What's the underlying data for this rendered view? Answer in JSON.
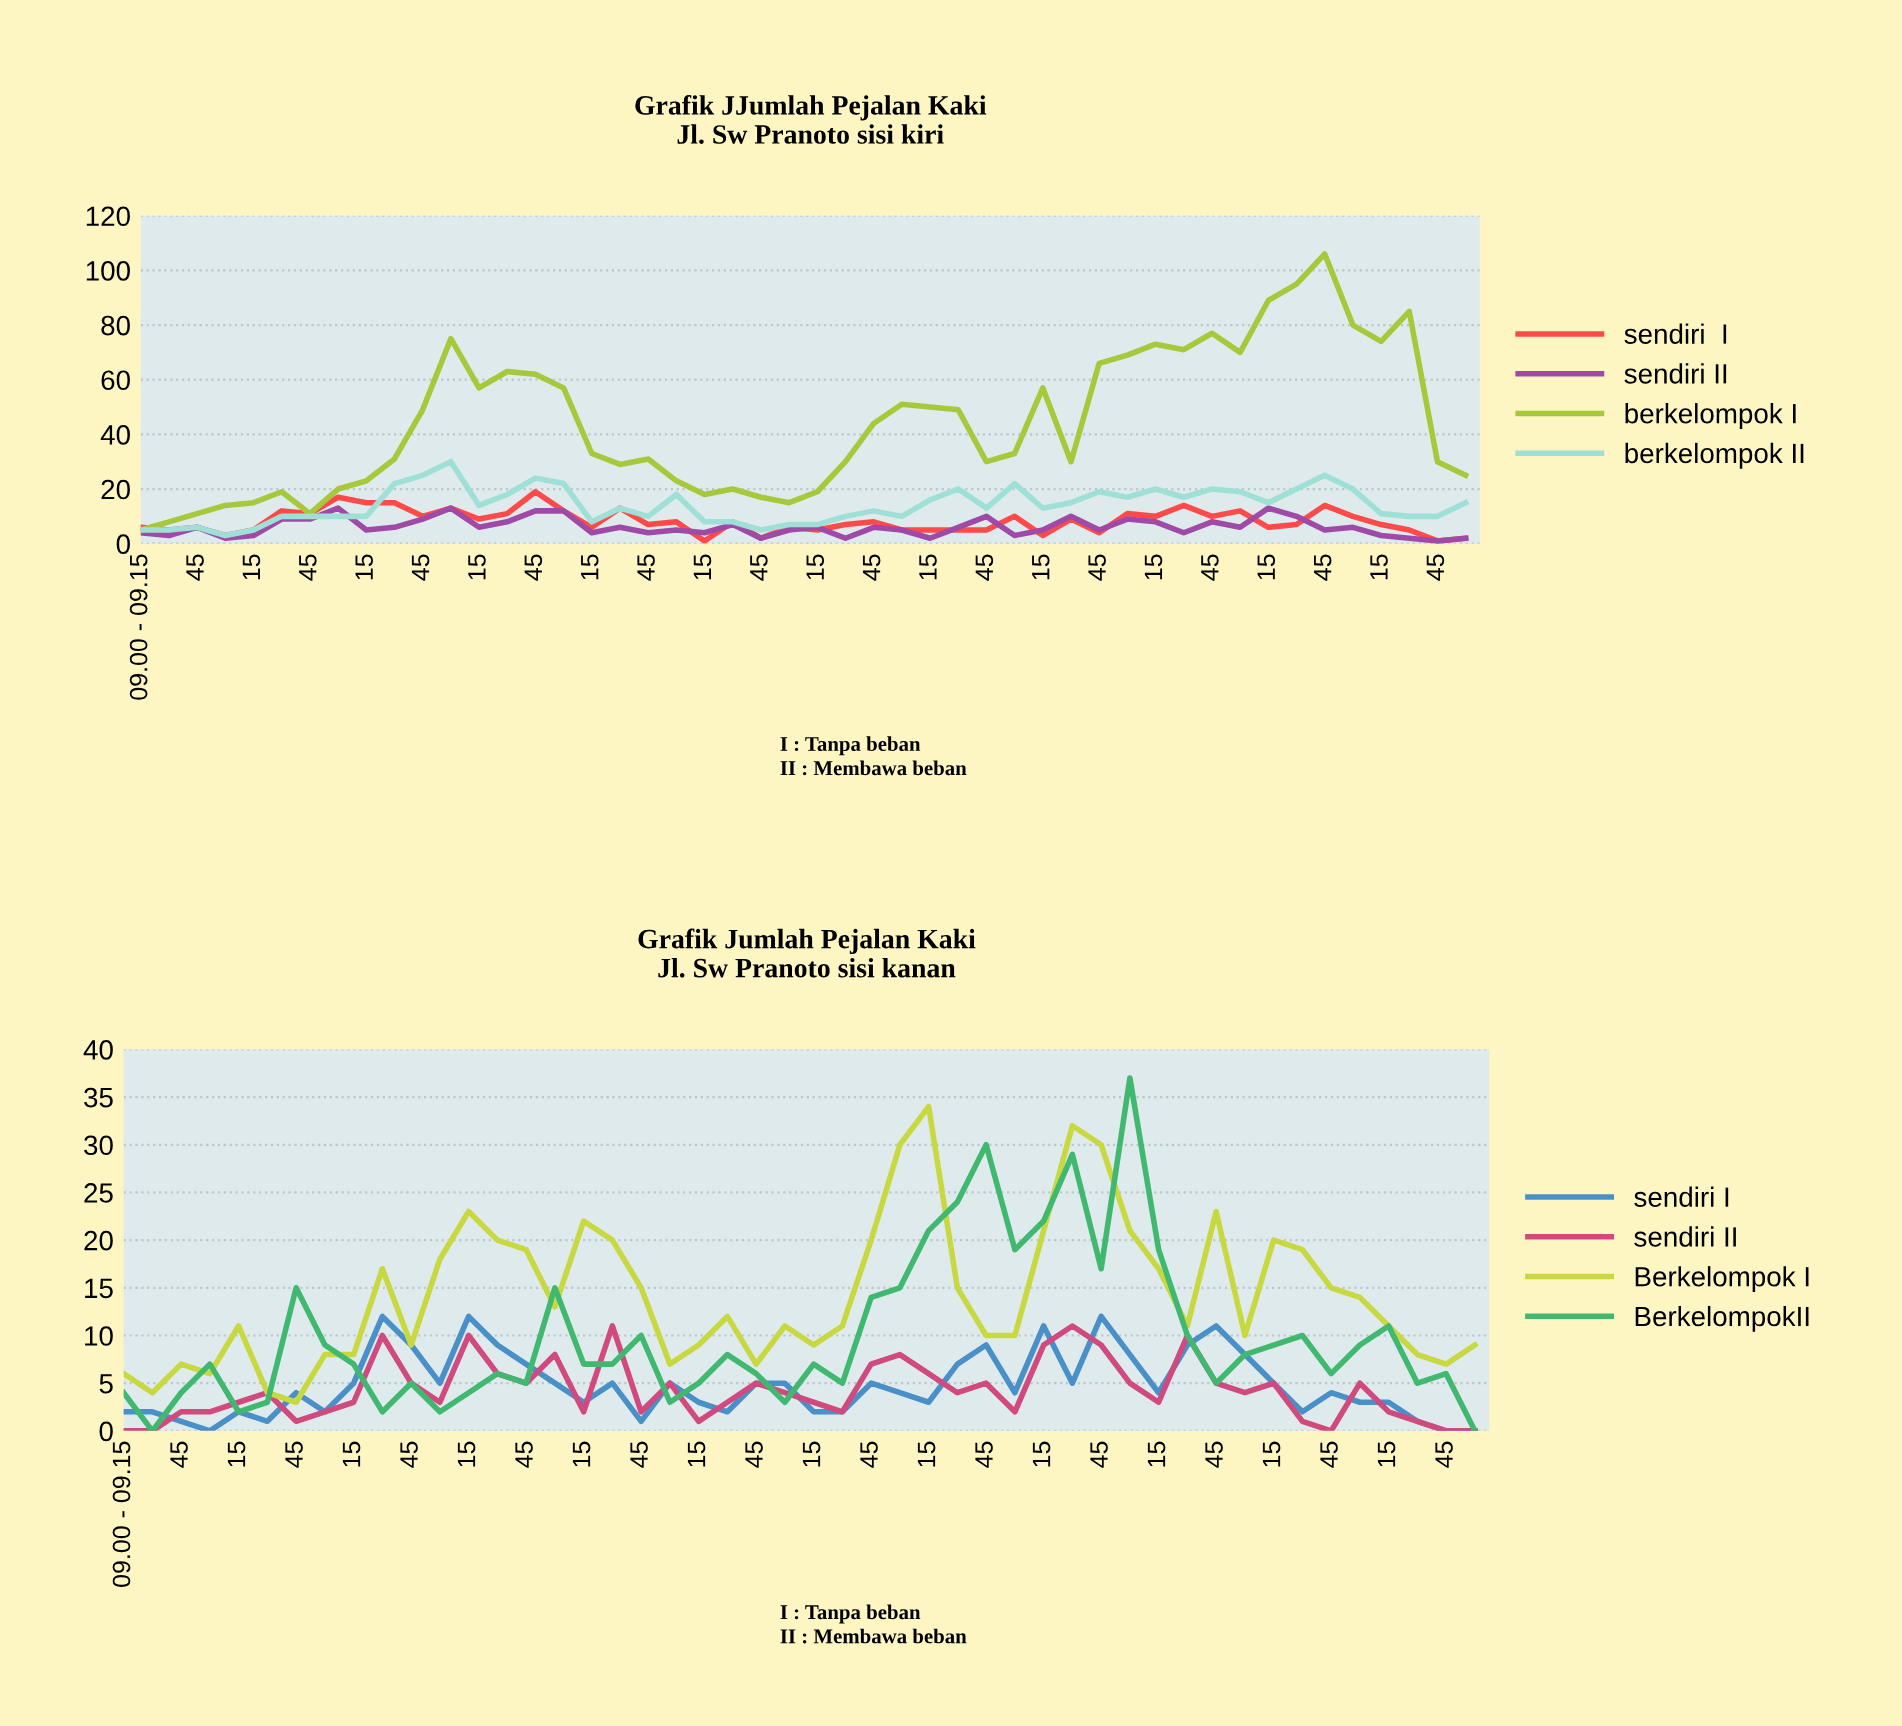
{
  "chart_data": [
    {
      "type": "line",
      "title": "Grafik JJumlah Pejalan Kaki\nJl. Sw Pranoto sisi kiri",
      "categories": [
        "09.00 - 09.15",
        null,
        "45",
        null,
        "15",
        null,
        "45",
        null,
        "15",
        null,
        "45",
        null,
        "15",
        null,
        "45",
        null,
        "15",
        null,
        "45",
        null,
        "15",
        null,
        "45",
        null,
        "15",
        null,
        "45",
        null,
        "15",
        null,
        "45",
        null,
        "15",
        null,
        "45",
        null,
        "15",
        null,
        "45",
        null,
        "15",
        null,
        "45",
        null,
        "15",
        null,
        "45",
        null
      ],
      "series": [
        {
          "name": "sendiri  I",
          "color": "#ff4a4a",
          "values": [
            6,
            5,
            6,
            3,
            5,
            12,
            11,
            17,
            15,
            15,
            10,
            13,
            9,
            11,
            19,
            12,
            6,
            13,
            7,
            8,
            1,
            8,
            2,
            6,
            5,
            7,
            8,
            5,
            5,
            5,
            5,
            10,
            3,
            9,
            4,
            11,
            10,
            14,
            10,
            12,
            6,
            7,
            14,
            10,
            7,
            5,
            1,
            2
          ]
        },
        {
          "name": "sendiri II",
          "color": "#a04aa8",
          "values": [
            4,
            3,
            6,
            2,
            3,
            9,
            9,
            13,
            5,
            6,
            9,
            13,
            6,
            8,
            12,
            12,
            4,
            6,
            4,
            5,
            4,
            7,
            2,
            5,
            6,
            2,
            6,
            5,
            2,
            6,
            10,
            3,
            5,
            10,
            5,
            9,
            8,
            4,
            8,
            6,
            13,
            10,
            5,
            6,
            3,
            2,
            1,
            2
          ]
        },
        {
          "name": "berkelompok I",
          "color": "#a8c83c",
          "values": [
            5,
            8,
            11,
            14,
            15,
            19,
            11,
            20,
            23,
            31,
            49,
            75,
            57,
            63,
            62,
            57,
            33,
            29,
            31,
            23,
            18,
            20,
            17,
            15,
            19,
            30,
            44,
            51,
            50,
            49,
            30,
            33,
            57,
            30,
            66,
            69,
            73,
            71,
            77,
            70,
            89,
            95,
            106,
            80,
            74,
            85,
            30,
            25
          ]
        },
        {
          "name": "berkelompok II",
          "color": "#9fe0d6",
          "values": [
            5,
            5,
            6,
            3,
            5,
            10,
            10,
            10,
            10,
            22,
            25,
            30,
            14,
            18,
            24,
            22,
            8,
            13,
            10,
            18,
            8,
            8,
            5,
            7,
            7,
            10,
            12,
            10,
            16,
            20,
            13,
            22,
            13,
            15,
            19,
            17,
            20,
            17,
            20,
            19,
            15,
            20,
            25,
            20,
            11,
            10,
            10,
            15
          ]
        }
      ],
      "ylim": [
        0,
        120
      ],
      "yticks": [
        0,
        20,
        40,
        60,
        80,
        100,
        120
      ],
      "grid": "y",
      "legend": "right",
      "annotations": [
        "I : Tanpa beban",
        "II : Membawa beban"
      ]
    },
    {
      "type": "line",
      "title": "Grafik Jumlah Pejalan Kaki\nJl. Sw Pranoto sisi kanan",
      "categories": [
        "09.00 - 09.15",
        null,
        "45",
        null,
        "15",
        null,
        "45",
        null,
        "15",
        null,
        "45",
        null,
        "15",
        null,
        "45",
        null,
        "15",
        null,
        "45",
        null,
        "15",
        null,
        "45",
        null,
        "15",
        null,
        "45",
        null,
        "15",
        null,
        "45",
        null,
        "15",
        null,
        "45",
        null,
        "15",
        null,
        "45",
        null,
        "15",
        null,
        "45",
        null,
        "15",
        null,
        "45",
        null
      ],
      "series": [
        {
          "name": "sendiri I",
          "color": "#4a90c8",
          "values": [
            2,
            2,
            1,
            0,
            2,
            1,
            4,
            2,
            5,
            12,
            9,
            5,
            12,
            9,
            7,
            5,
            3,
            5,
            1,
            5,
            3,
            2,
            5,
            5,
            2,
            2,
            5,
            4,
            3,
            7,
            9,
            4,
            11,
            5,
            12,
            8,
            4,
            9,
            11,
            8,
            5,
            2,
            4,
            3,
            3,
            1,
            0,
            0
          ]
        },
        {
          "name": "sendiri II",
          "color": "#d04a80",
          "values": [
            0,
            0,
            2,
            2,
            3,
            4,
            1,
            2,
            3,
            10,
            5,
            3,
            10,
            6,
            5,
            8,
            2,
            11,
            2,
            5,
            1,
            3,
            5,
            4,
            3,
            2,
            7,
            8,
            6,
            4,
            5,
            2,
            9,
            11,
            9,
            5,
            3,
            10,
            5,
            4,
            5,
            1,
            0,
            5,
            2,
            1,
            0,
            0
          ]
        },
        {
          "name": "Berkelompok I",
          "color": "#c8d840",
          "values": [
            6,
            4,
            7,
            6,
            11,
            4,
            3,
            8,
            8,
            17,
            9,
            18,
            23,
            20,
            19,
            13,
            22,
            20,
            15,
            7,
            9,
            12,
            7,
            11,
            9,
            11,
            20,
            30,
            34,
            15,
            10,
            10,
            21,
            32,
            30,
            21,
            17,
            11,
            23,
            10,
            20,
            19,
            15,
            14,
            11,
            8,
            7,
            9
          ]
        },
        {
          "name": "BerkelompokII",
          "color": "#40b870",
          "values": [
            4,
            0,
            4,
            7,
            2,
            3,
            15,
            9,
            7,
            2,
            5,
            2,
            4,
            6,
            5,
            15,
            7,
            7,
            10,
            3,
            5,
            8,
            6,
            3,
            7,
            5,
            14,
            15,
            21,
            24,
            30,
            19,
            22,
            29,
            17,
            37,
            19,
            10,
            5,
            8,
            9,
            10,
            6,
            9,
            11,
            5,
            6,
            0
          ]
        }
      ],
      "ylim": [
        0,
        40
      ],
      "yticks": [
        0,
        5,
        10,
        15,
        20,
        25,
        30,
        35,
        40
      ],
      "grid": "y",
      "legend": "right",
      "annotations": [
        "I : Tanpa beban",
        "II : Membawa beban"
      ]
    }
  ]
}
